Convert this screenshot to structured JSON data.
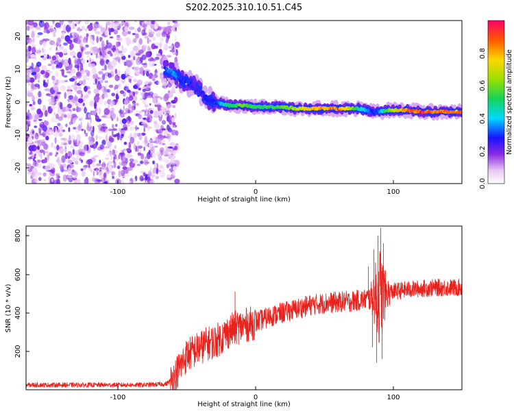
{
  "figure": {
    "title": "S202.2025.310.10.51.C45"
  },
  "chart_data": [
    {
      "type": "heatmap",
      "name": "spectrogram",
      "xlabel": "Height of straight line (km)",
      "ylabel": "Frequency (Hz)",
      "xlim": [
        -167,
        150
      ],
      "ylim": [
        -25,
        25
      ],
      "xticks": [
        -100,
        0,
        100
      ],
      "xtick_labels": [
        "-100",
        "0",
        "100"
      ],
      "yticks": [
        -20,
        -10,
        0,
        10,
        20
      ],
      "ytick_labels": [
        "-20",
        "-10",
        "0",
        "10",
        "20"
      ],
      "noise_region_x": [
        -167,
        -62
      ],
      "ridge": {
        "x": [
          -66,
          -60,
          -55,
          -50,
          -45,
          -40,
          -35,
          -30,
          -20,
          -10,
          0,
          10,
          20,
          30,
          40,
          60,
          75,
          80,
          85,
          90,
          95,
          100,
          110,
          120,
          130,
          140,
          150
        ],
        "freq": [
          10,
          9,
          7,
          6,
          5,
          3,
          1,
          0,
          -1,
          -1,
          -1.5,
          -1.5,
          -1.5,
          -2,
          -2,
          -2,
          -2,
          -2.5,
          -3,
          -3,
          -2.5,
          -2.5,
          -2.5,
          -3,
          -3,
          -3,
          -3
        ],
        "amplitude": [
          0.3,
          0.4,
          0.3,
          0.3,
          0.25,
          0.25,
          0.3,
          0.3,
          0.5,
          0.6,
          0.55,
          0.55,
          0.6,
          0.7,
          0.8,
          0.9,
          0.5,
          0.4,
          0.3,
          0.35,
          0.6,
          0.7,
          0.9,
          0.95,
          0.9,
          0.9,
          0.9
        ]
      },
      "colorbar": {
        "label": "Normalized spectral amplitude",
        "range": [
          0,
          1
        ],
        "ticks": [
          0.0,
          0.2,
          0.4,
          0.6,
          0.8
        ],
        "tick_labels": [
          "0.0",
          "0.2",
          "0.4",
          "0.6",
          "0.8"
        ]
      }
    },
    {
      "type": "line",
      "name": "snr",
      "xlabel": "Height of straight line (km)",
      "ylabel": "SNR (10 * v/v)",
      "xlim": [
        -167,
        150
      ],
      "ylim": [
        0,
        850
      ],
      "xticks": [
        -100,
        0,
        100
      ],
      "xtick_labels": [
        "-100",
        "0",
        "100"
      ],
      "yticks": [
        200,
        400,
        600,
        800
      ],
      "ytick_labels": [
        "200",
        "400",
        "600",
        "800"
      ],
      "series": [
        {
          "name": "SNR",
          "color": "#e8221d",
          "x": [
            -167,
            -140,
            -120,
            -100,
            -80,
            -65,
            -60,
            -55,
            -50,
            -45,
            -40,
            -35,
            -30,
            -25,
            -20,
            -15,
            -10,
            -5,
            0,
            10,
            20,
            30,
            40,
            50,
            60,
            70,
            75,
            80,
            85,
            90,
            95,
            100,
            110,
            120,
            130,
            140,
            150
          ],
          "y": [
            25,
            25,
            25,
            25,
            25,
            30,
            60,
            120,
            180,
            200,
            220,
            240,
            250,
            270,
            300,
            320,
            330,
            340,
            350,
            380,
            400,
            420,
            440,
            450,
            455,
            460,
            465,
            470,
            480,
            490,
            500,
            510,
            520,
            525,
            530,
            530,
            530
          ]
        }
      ],
      "spikes": [
        {
          "x": -15,
          "y": 510
        },
        {
          "x": 82,
          "y": 640
        },
        {
          "x": 86,
          "y": 730
        },
        {
          "x": 89,
          "y": 800
        },
        {
          "x": 91,
          "y": 840
        },
        {
          "x": 93,
          "y": 760
        },
        {
          "x": 88,
          "y": 140
        },
        {
          "x": 92,
          "y": 160
        },
        {
          "x": 85,
          "y": 220
        }
      ]
    }
  ]
}
